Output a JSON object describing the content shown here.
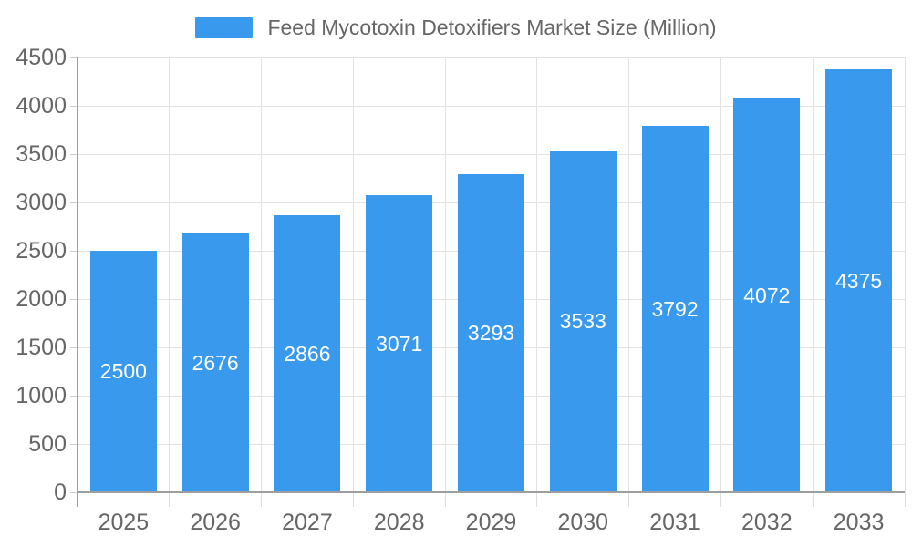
{
  "legend": {
    "label": "Feed Mycotoxin Detoxifiers Market Size (Million)"
  },
  "colors": {
    "bar": "#3999EC",
    "grid": "#e2e2e2",
    "axis": "#9e9e9e",
    "y_tick": "#cccccc",
    "x_tick": "#dddddd",
    "axis_text": "#666666",
    "bar_label_text": "#ffffff",
    "background": "#ffffff"
  },
  "chart_data": {
    "type": "bar",
    "title": "Feed Mycotoxin Detoxifiers Market Size (Million)",
    "categories": [
      "2025",
      "2026",
      "2027",
      "2028",
      "2029",
      "2030",
      "2031",
      "2032",
      "2033"
    ],
    "values": [
      2500,
      2676,
      2866,
      3071,
      3293,
      3533,
      3792,
      4072,
      4375
    ],
    "xlabel": "",
    "ylabel": "",
    "ylim": [
      0,
      4500
    ],
    "ytick_step": 500,
    "ytick_labels": [
      "0",
      "500",
      "1000",
      "1500",
      "2000",
      "2500",
      "3000",
      "3500",
      "4000",
      "4500"
    ],
    "grid": true,
    "value_labels": "inside-center",
    "legend_position": "top-center"
  }
}
